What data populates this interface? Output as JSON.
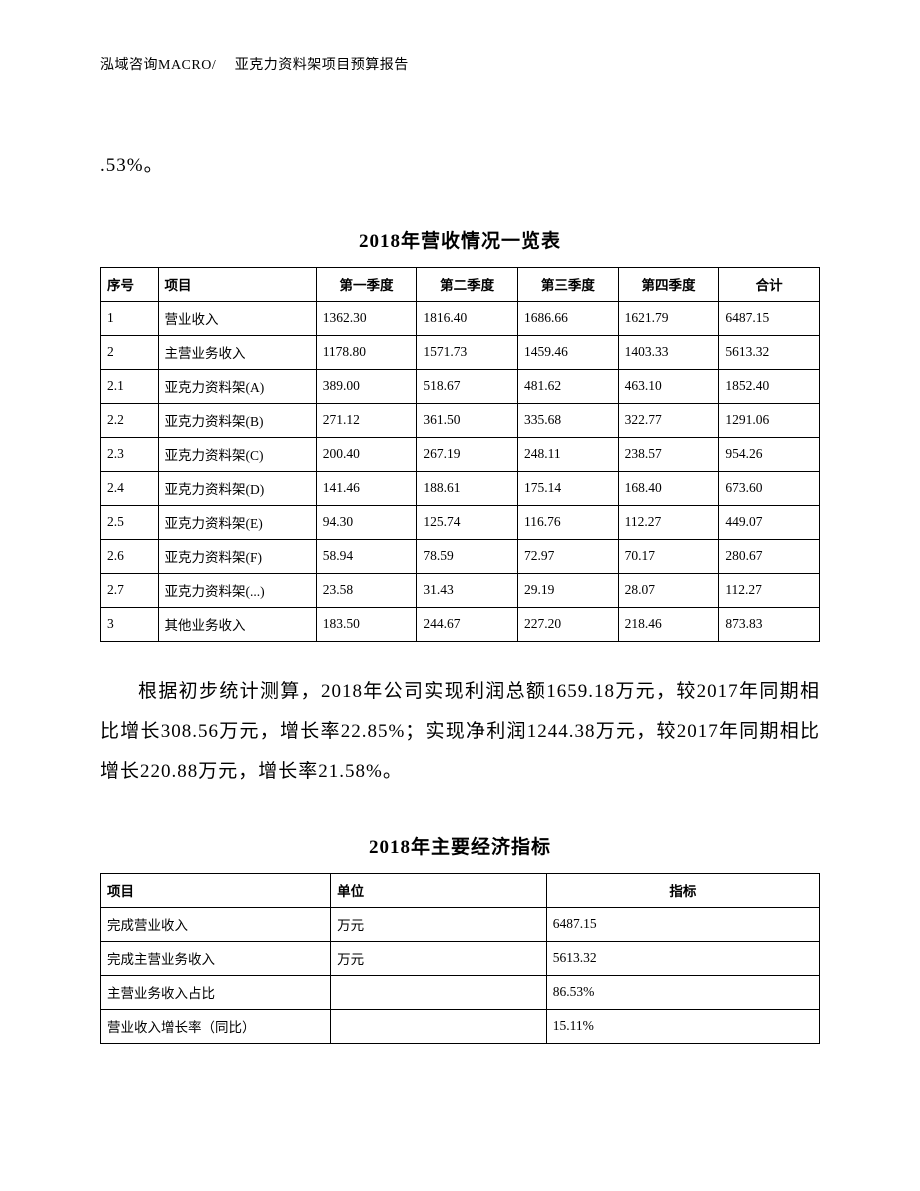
{
  "header": "泓域咨询MACRO/　 亚克力资料架项目预算报告",
  "top_fragment": ".53%。",
  "table1": {
    "title": "2018年营收情况一览表",
    "headers": [
      "序号",
      "项目",
      "第一季度",
      "第二季度",
      "第三季度",
      "第四季度",
      "合计"
    ],
    "rows": [
      [
        "1",
        "营业收入",
        "1362.30",
        "1816.40",
        "1686.66",
        "1621.79",
        "6487.15"
      ],
      [
        "2",
        "主营业务收入",
        "1178.80",
        "1571.73",
        "1459.46",
        "1403.33",
        "5613.32"
      ],
      [
        "2.1",
        "亚克力资料架(A)",
        "389.00",
        "518.67",
        "481.62",
        "463.10",
        "1852.40"
      ],
      [
        "2.2",
        "亚克力资料架(B)",
        "271.12",
        "361.50",
        "335.68",
        "322.77",
        "1291.06"
      ],
      [
        "2.3",
        "亚克力资料架(C)",
        "200.40",
        "267.19",
        "248.11",
        "238.57",
        "954.26"
      ],
      [
        "2.4",
        "亚克力资料架(D)",
        "141.46",
        "188.61",
        "175.14",
        "168.40",
        "673.60"
      ],
      [
        "2.5",
        "亚克力资料架(E)",
        "94.30",
        "125.74",
        "116.76",
        "112.27",
        "449.07"
      ],
      [
        "2.6",
        "亚克力资料架(F)",
        "58.94",
        "78.59",
        "72.97",
        "70.17",
        "280.67"
      ],
      [
        "2.7",
        "亚克力资料架(...)",
        "23.58",
        "31.43",
        "29.19",
        "28.07",
        "112.27"
      ],
      [
        "3",
        "其他业务收入",
        "183.50",
        "244.67",
        "227.20",
        "218.46",
        "873.83"
      ]
    ]
  },
  "paragraph": "根据初步统计测算，2018年公司实现利润总额1659.18万元，较2017年同期相比增长308.56万元，增长率22.85%；实现净利润1244.38万元，较2017年同期相比增长220.88万元，增长率21.58%。",
  "table2": {
    "title": "2018年主要经济指标",
    "headers": [
      "项目",
      "单位",
      "指标"
    ],
    "rows": [
      [
        "完成营业收入",
        "万元",
        "6487.15"
      ],
      [
        "完成主营业务收入",
        "万元",
        "5613.32"
      ],
      [
        "主营业务收入占比",
        "",
        "86.53%"
      ],
      [
        "营业收入增长率（同比）",
        "",
        "15.11%"
      ]
    ]
  }
}
